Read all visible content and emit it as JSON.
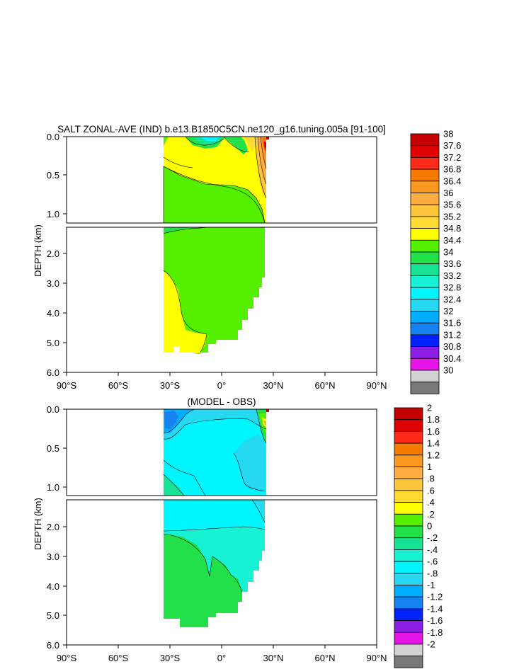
{
  "chart_data": [
    {
      "type": "heatmap",
      "title": "SALT ZONAL-AVE (IND) b.e13.B1850C5CN.ne120_g16.tuning.005a [91-100]",
      "ylabel": "DEPTH (km)",
      "xlabel": "",
      "xlim": [
        -90,
        90
      ],
      "ylim": [
        0,
        6
      ],
      "x_ticks": [
        -90,
        -60,
        -30,
        0,
        30,
        60,
        90
      ],
      "x_tick_labels": [
        "90°S",
        "60°S",
        "30°S",
        "0°",
        "30°N",
        "60°N",
        "90°N"
      ],
      "upper_y_ticks": [
        "0.0",
        "0.5",
        "1.0"
      ],
      "lower_y_ticks": [
        "2.0",
        "3.0",
        "4.0",
        "5.0",
        "6.0"
      ],
      "colorbar_labels": [
        "38",
        "37.6",
        "37.2",
        "36.8",
        "36.4",
        "36",
        "35.6",
        "35.2",
        "34.8",
        "34.4",
        "34",
        "33.6",
        "33.2",
        "32.8",
        "32.4",
        "32",
        "31.6",
        "31.2",
        "30.8",
        "30.4",
        "30"
      ]
    },
    {
      "type": "heatmap",
      "title": "(MODEL - OBS)",
      "ylabel": "DEPTH (km)",
      "xlabel": "",
      "xlim": [
        -90,
        90
      ],
      "ylim": [
        0,
        6
      ],
      "x_ticks": [
        -90,
        -60,
        -30,
        0,
        30,
        60,
        90
      ],
      "x_tick_labels": [
        "90°S",
        "60°S",
        "30°S",
        "0°",
        "30°N",
        "60°N",
        "90°N"
      ],
      "upper_y_ticks": [
        "0.0",
        "0.5",
        "1.0"
      ],
      "lower_y_ticks": [
        "2.0",
        "3.0",
        "4.0",
        "5.0",
        "6.0"
      ],
      "colorbar_labels": [
        "2",
        "1.8",
        "1.6",
        "1.4",
        "1.2",
        "1",
        ".8",
        ".6",
        ".4",
        ".2",
        "0",
        "-.2",
        "-.4",
        "-.6",
        "-.8",
        "-1",
        "-1.2",
        "-1.4",
        "-1.6",
        "-1.8",
        "-2"
      ]
    }
  ],
  "colors": {
    "palette_top_to_bottom": [
      "#c40000",
      "#df0000",
      "#ff2a1a",
      "#f47a00",
      "#fb9820",
      "#ffad40",
      "#ffc53a",
      "#ffdb34",
      "#ffff00",
      "#55f000",
      "#22e04a",
      "#16e294",
      "#18f2d4",
      "#00f6ff",
      "#26d8f0",
      "#00aeff",
      "#1681f0",
      "#0022ff",
      "#8c1ee6",
      "#e614e6",
      "#d2d2d2",
      "#787878"
    ]
  }
}
